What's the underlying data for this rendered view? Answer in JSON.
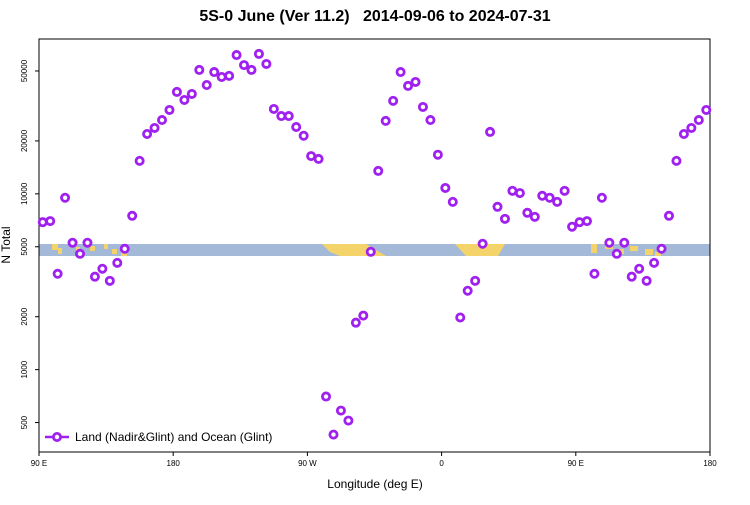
{
  "chart_data": {
    "type": "scatter",
    "title": "5S-0 June (Ver 11.2)   2014-09-06 to 2024-07-31",
    "x_label": "Longitude (deg E)",
    "y_label": "N Total",
    "y_log": true,
    "legend": "bottom-left",
    "xlim": [
      90,
      540
    ],
    "xticks": [
      {
        "value": 90,
        "label": "90 E"
      },
      180,
      {
        "value": 270,
        "label": "90 W"
      },
      {
        "value": 360,
        "label": "0"
      },
      {
        "value": 450,
        "label": "90 E"
      },
      {
        "value": 540,
        "label": "180"
      }
    ],
    "ylim": [
      340,
      76000
    ],
    "yticks": [
      500,
      1000,
      2000,
      5000,
      10000,
      20000,
      50000
    ],
    "x": [
      92.5,
      97.5,
      102.5,
      107.5,
      112.5,
      117.5,
      122.5,
      127.5,
      132.5,
      137.5,
      142.5,
      147.5,
      152.5,
      157.5,
      162.5,
      167.5,
      172.5,
      177.5,
      182.5,
      187.5,
      192.5,
      197.5,
      202.5,
      207.5,
      212.5,
      217.5,
      222.5,
      227.5,
      232.5,
      237.5,
      242.5,
      247.5,
      252.5,
      257.5,
      262.5,
      267.5,
      272.5,
      277.5,
      282.5,
      287.5,
      292.5,
      297.5,
      302.5,
      307.5,
      312.5,
      317.5,
      322.5,
      327.5,
      332.5,
      337.5,
      342.5,
      347.5,
      352.5,
      357.5,
      362.5,
      367.5,
      372.5,
      377.5,
      382.5,
      387.5,
      392.5,
      397.5,
      402.5,
      407.5,
      412.5,
      417.5,
      422.5,
      427.5,
      432.5,
      437.5,
      442.5,
      447.5,
      452.5,
      457.5,
      462.5,
      467.5,
      472.5,
      477.5,
      482.5,
      487.5,
      492.5,
      497.5,
      502.5,
      507.5,
      512.5,
      517.5,
      522.5,
      527.5,
      532.5,
      537.5
    ],
    "series": [
      {
        "name": "Land (Nadir&Glint) and Ocean (Glint)",
        "color": "#a020f0",
        "values": [
          6900,
          7000,
          3510,
          9500,
          5270,
          4560,
          5270,
          3380,
          3750,
          3200,
          4050,
          4870,
          7500,
          15400,
          21900,
          23700,
          26300,
          30000,
          38000,
          34200,
          37000,
          50700,
          41600,
          49300,
          46200,
          46900,
          61600,
          54000,
          50700,
          62500,
          54800,
          30400,
          27700,
          27700,
          24000,
          21400,
          16400,
          15800,
          703,
          427,
          585,
          513,
          1850,
          2030,
          4680,
          13500,
          26000,
          33800,
          49300,
          41100,
          43300,
          31200,
          26300,
          16700,
          10800,
          9000,
          1980,
          2810,
          3200,
          5200,
          22500,
          8440,
          7210,
          10400,
          10100,
          7800,
          7400,
          9750,
          9500,
          9000,
          10400,
          6500,
          6900,
          7000,
          3510,
          9500,
          5270,
          4560,
          5270,
          3380,
          3750,
          3200,
          4050,
          4870,
          7500,
          15400,
          21900,
          23700,
          26300,
          30000
        ]
      }
    ]
  }
}
